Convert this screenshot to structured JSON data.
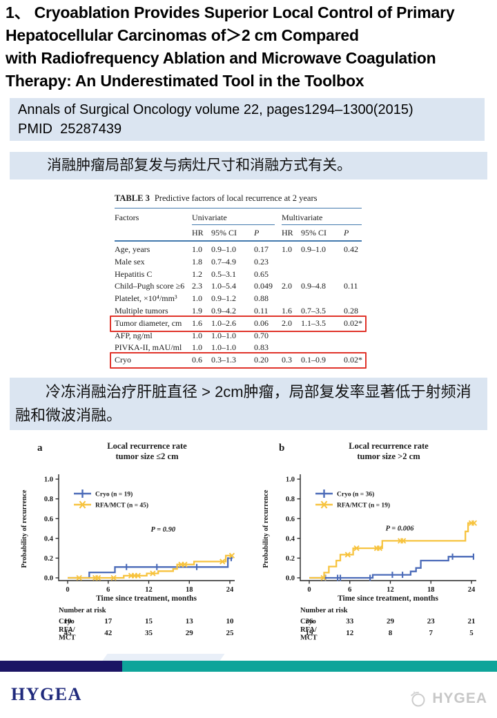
{
  "title": "1、 Cryoablation Provides Superior Local Control of Primary\nHepatocellular Carcinomas of＞2 cm Compared\nwith Radiofrequency Ablation and Microwave Coagulation\nTherapy: An Underestimated Tool in the Toolbox",
  "citation": {
    "line1": "Annals of Surgical Oncology volume 22, pages1294–1300(2015)",
    "line2": "PMID  25287439"
  },
  "highlight1": "消融肿瘤局部复发与病灶尺寸和消融方式有关。",
  "highlight2": "冷冻消融治疗肝脏直径 > 2cm肿瘤，局部复发率显著低于射频消融和微波消融。",
  "table": {
    "caption_label": "TABLE 3",
    "caption_text": "Predictive factors of local recurrence at 2 years",
    "col_factors": "Factors",
    "group_headers": [
      "Univariate",
      "Multivariate"
    ],
    "sub_headers": [
      "HR",
      "95% CI",
      "P"
    ],
    "rows": [
      {
        "factor": "Age, years",
        "uni": [
          "1.0",
          "0.9–1.0",
          "0.17"
        ],
        "multi": [
          "1.0",
          "0.9–1.0",
          "0.42"
        ],
        "highlight": false
      },
      {
        "factor": "Male sex",
        "uni": [
          "1.8",
          "0.7–4.9",
          "0.23"
        ],
        "multi": [
          "",
          "",
          ""
        ],
        "highlight": false
      },
      {
        "factor": "Hepatitis C",
        "uni": [
          "1.2",
          "0.5–3.1",
          "0.65"
        ],
        "multi": [
          "",
          "",
          ""
        ],
        "highlight": false
      },
      {
        "factor": "Child–Pugh score ≥6",
        "uni": [
          "2.3",
          "1.0–5.4",
          "0.049"
        ],
        "multi": [
          "2.0",
          "0.9–4.8",
          "0.11"
        ],
        "highlight": false
      },
      {
        "factor": "Platelet, ×10⁴/mm³",
        "uni": [
          "1.0",
          "0.9–1.2",
          "0.88"
        ],
        "multi": [
          "",
          "",
          ""
        ],
        "highlight": false
      },
      {
        "factor": "Multiple tumors",
        "uni": [
          "1.9",
          "0.9–4.2",
          "0.11"
        ],
        "multi": [
          "1.6",
          "0.7–3.5",
          "0.28"
        ],
        "highlight": false
      },
      {
        "factor": "Tumor diameter, cm",
        "uni": [
          "1.6",
          "1.0–2.6",
          "0.06"
        ],
        "multi": [
          "2.0",
          "1.1–3.5",
          "0.02*"
        ],
        "highlight": true
      },
      {
        "factor": "AFP, ng/ml",
        "uni": [
          "1.0",
          "1.0–1.0",
          "0.70"
        ],
        "multi": [
          "",
          "",
          ""
        ],
        "highlight": false
      },
      {
        "factor": "PIVKA-II, mAU/ml",
        "uni": [
          "1.0",
          "1.0–1.0",
          "0.83"
        ],
        "multi": [
          "",
          "",
          ""
        ],
        "highlight": false
      },
      {
        "factor": "Cryo",
        "uni": [
          "0.6",
          "0.3–1.3",
          "0.20"
        ],
        "multi": [
          "0.3",
          "0.1–0.9",
          "0.02*"
        ],
        "highlight": true
      }
    ]
  },
  "chart_data": [
    {
      "type": "line",
      "panel": "a",
      "title": "Local recurrence rate",
      "subtitle": "tumor size ≤2 cm",
      "xlabel": "Time since treatment, months",
      "ylabel": "Probability of recurrence",
      "xlim": [
        0,
        25
      ],
      "ylim": [
        0,
        1.05
      ],
      "xticks": [
        0,
        6,
        12,
        18,
        24
      ],
      "yticks": [
        0.0,
        0.2,
        0.4,
        0.6,
        0.8,
        1.0
      ],
      "grid": false,
      "legend_position": "top-left",
      "p_value": "P = 0.90",
      "p_pos": [
        12.3,
        0.47
      ],
      "series": [
        {
          "name": "Cryo (n = 19)",
          "color_key": "cryo_blue",
          "marker": "plus",
          "steps": [
            [
              0,
              0
            ],
            [
              3.2,
              0
            ],
            [
              3.2,
              0.055
            ],
            [
              7,
              0.055
            ],
            [
              7,
              0.11
            ],
            [
              23.7,
              0.11
            ],
            [
              23.7,
              0.2
            ],
            [
              24.4,
              0.2
            ]
          ],
          "censors": [
            [
              8.7,
              0.11
            ],
            [
              13.2,
              0.11
            ],
            [
              19.1,
              0.11
            ],
            [
              24.2,
              0.2
            ]
          ]
        },
        {
          "name": "RFA/MCT (n = 45)",
          "color_key": "rfa_yellow",
          "marker": "x",
          "steps": [
            [
              0,
              0
            ],
            [
              8.3,
              0
            ],
            [
              8.3,
              0.022
            ],
            [
              11.7,
              0.022
            ],
            [
              11.7,
              0.045
            ],
            [
              13.4,
              0.045
            ],
            [
              13.4,
              0.068
            ],
            [
              15.6,
              0.068
            ],
            [
              15.6,
              0.09
            ],
            [
              16.2,
              0.09
            ],
            [
              16.2,
              0.135
            ],
            [
              18.7,
              0.135
            ],
            [
              18.7,
              0.165
            ],
            [
              23.4,
              0.165
            ],
            [
              23.4,
              0.225
            ],
            [
              24.3,
              0.225
            ]
          ],
          "censors": [
            [
              1.7,
              0
            ],
            [
              4.1,
              0
            ],
            [
              4.5,
              0
            ],
            [
              6.8,
              0
            ],
            [
              9.4,
              0.022
            ],
            [
              9.9,
              0.022
            ],
            [
              10.4,
              0.022
            ],
            [
              12.6,
              0.045
            ],
            [
              16.8,
              0.135
            ],
            [
              17.3,
              0.135
            ],
            [
              22.9,
              0.165
            ],
            [
              24.3,
              0.225
            ]
          ]
        }
      ],
      "number_at_risk": {
        "label": "Number at risk",
        "rows": [
          {
            "name": "Cryo",
            "values": [
              "19",
              "17",
              "15",
              "13",
              "10"
            ]
          },
          {
            "name": "RFA/MCT",
            "values": [
              "45",
              "42",
              "35",
              "29",
              "25"
            ]
          }
        ]
      }
    },
    {
      "type": "line",
      "panel": "b",
      "title": "Local recurrence rate",
      "subtitle": "tumor size >2 cm",
      "xlabel": "Time since treatment, months",
      "ylabel": "Probability of recurrence",
      "xlim": [
        0,
        25
      ],
      "ylim": [
        0,
        1.05
      ],
      "xticks": [
        0,
        6,
        12,
        18,
        24
      ],
      "yticks": [
        0.0,
        0.2,
        0.4,
        0.6,
        0.8,
        1.0
      ],
      "grid": false,
      "legend_position": "top-left",
      "p_value": "P = 0.006",
      "p_pos": [
        11.3,
        0.48
      ],
      "series": [
        {
          "name": "Cryo (n = 36)",
          "color_key": "cryo_blue",
          "marker": "plus",
          "steps": [
            [
              0,
              0
            ],
            [
              9.4,
              0
            ],
            [
              9.4,
              0.031
            ],
            [
              15,
              0.031
            ],
            [
              15,
              0.065
            ],
            [
              15.8,
              0.065
            ],
            [
              15.8,
              0.1
            ],
            [
              16.5,
              0.1
            ],
            [
              16.5,
              0.175
            ],
            [
              20.6,
              0.175
            ],
            [
              20.6,
              0.215
            ],
            [
              24.4,
              0.215
            ]
          ],
          "censors": [
            [
              2.4,
              0
            ],
            [
              4.2,
              0
            ],
            [
              4.6,
              0
            ],
            [
              9.0,
              0
            ],
            [
              12.3,
              0.031
            ],
            [
              13.8,
              0.031
            ],
            [
              21.2,
              0.215
            ],
            [
              24.3,
              0.215
            ]
          ]
        },
        {
          "name": "RFA/MCT (n = 19)",
          "color_key": "rfa_yellow",
          "marker": "x",
          "steps": [
            [
              0,
              0
            ],
            [
              2.2,
              0
            ],
            [
              2.2,
              0.053
            ],
            [
              2.9,
              0.053
            ],
            [
              2.9,
              0.115
            ],
            [
              4.0,
              0.115
            ],
            [
              4.0,
              0.175
            ],
            [
              4.6,
              0.175
            ],
            [
              4.6,
              0.235
            ],
            [
              6.5,
              0.235
            ],
            [
              6.5,
              0.3
            ],
            [
              10.8,
              0.3
            ],
            [
              10.8,
              0.375
            ],
            [
              23.1,
              0.375
            ],
            [
              23.1,
              0.47
            ],
            [
              23.5,
              0.47
            ],
            [
              23.5,
              0.555
            ],
            [
              24.4,
              0.555
            ]
          ],
          "censors": [
            [
              2.1,
              0
            ],
            [
              5.7,
              0.235
            ],
            [
              7.0,
              0.3
            ],
            [
              10.0,
              0.3
            ],
            [
              10.4,
              0.3
            ],
            [
              13.5,
              0.375
            ],
            [
              13.9,
              0.375
            ],
            [
              24.0,
              0.555
            ],
            [
              24.4,
              0.555
            ]
          ]
        }
      ],
      "number_at_risk": {
        "label": "Number at risk",
        "rows": [
          {
            "name": "Cryo",
            "values": [
              "36",
              "33",
              "29",
              "23",
              "21"
            ]
          },
          {
            "name": "RFA/MCT",
            "values": [
              "19",
              "12",
              "8",
              "7",
              "5"
            ]
          }
        ]
      }
    }
  ],
  "footer": {
    "brand": "HYGEA",
    "watermark": "HYGEA"
  },
  "colors": {
    "cryo_blue": "#4a6ab8",
    "rfa_yellow": "#f7c33e",
    "box_bg": "#dbe5f1",
    "table_rule_blue": "#4178ad",
    "highlight_red": "#e0332a",
    "footer_navy": "#1b1464",
    "footer_teal": "#0ea49a",
    "brand_navy": "#202a7c",
    "watermark_gray": "#c7c7c7"
  }
}
